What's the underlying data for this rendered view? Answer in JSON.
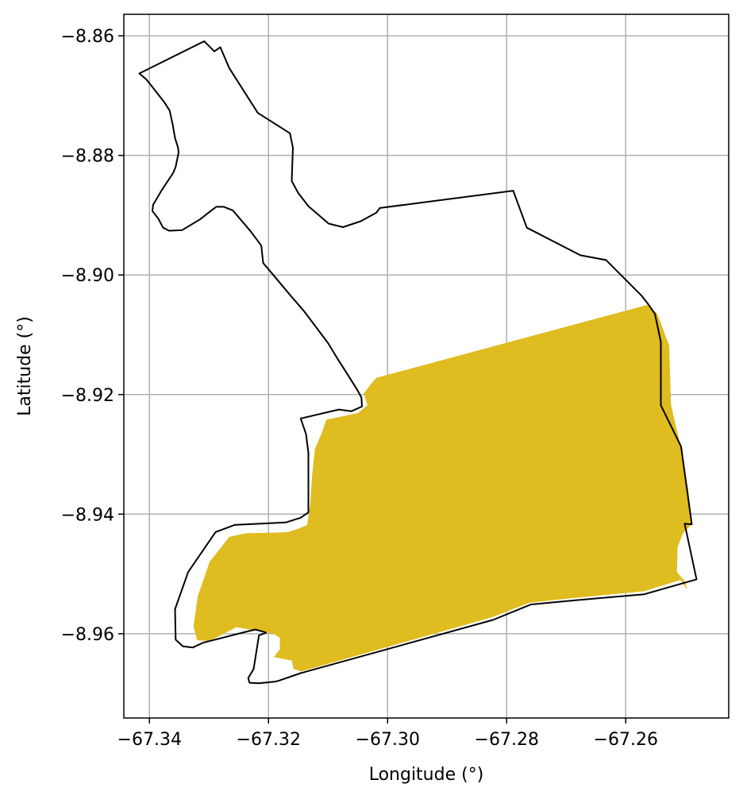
{
  "chart_data": {
    "type": "map",
    "title": "",
    "xlabel": "Longitude (°)",
    "ylabel": "Latitude (°)",
    "xlim": [
      -67.3443,
      -67.2427
    ],
    "ylim": [
      -8.9741,
      -8.8564
    ],
    "grid": true,
    "xticks": [
      -67.34,
      -67.32,
      -67.3,
      -67.28,
      -67.26
    ],
    "xtick_labels": [
      "−67.34",
      "−67.32",
      "−67.30",
      "−67.28",
      "−67.26"
    ],
    "yticks": [
      -8.86,
      -8.88,
      -8.9,
      -8.92,
      -8.94,
      -8.96
    ],
    "ytick_labels": [
      "−8.86",
      "−8.88",
      "−8.90",
      "−8.92",
      "−8.94",
      "−8.96"
    ],
    "colors": {
      "outline": "#000000",
      "fill": "#dfbc1f",
      "grid": "#b0b0b0"
    },
    "outline": [
      [
        -67.3281,
        -8.8619
      ],
      [
        -67.3266,
        -8.8654
      ],
      [
        -67.3218,
        -8.8729
      ],
      [
        -67.3164,
        -8.8763
      ],
      [
        -67.3159,
        -8.8787
      ],
      [
        -67.3161,
        -8.8843
      ],
      [
        -67.315,
        -8.8863
      ],
      [
        -67.3133,
        -8.8885
      ],
      [
        -67.3099,
        -8.8914
      ],
      [
        -67.3075,
        -8.892
      ],
      [
        -67.3045,
        -8.891
      ],
      [
        -67.3019,
        -8.8896
      ],
      [
        -67.3013,
        -8.8888
      ],
      [
        -67.2789,
        -8.8859
      ],
      [
        -67.2766,
        -8.8921
      ],
      [
        -67.2676,
        -8.8967
      ],
      [
        -67.2633,
        -8.8975
      ],
      [
        -67.2573,
        -8.9035
      ],
      [
        -67.2562,
        -8.9049
      ],
      [
        -67.2551,
        -8.9065
      ],
      [
        -67.2541,
        -8.9112
      ],
      [
        -67.2541,
        -8.9218
      ],
      [
        -67.2507,
        -8.9287
      ],
      [
        -67.2489,
        -8.9417
      ],
      [
        -67.2501,
        -8.9416
      ],
      [
        -67.2481,
        -8.9509
      ],
      [
        -67.2569,
        -8.9534
      ],
      [
        -67.2684,
        -8.9544
      ],
      [
        -67.2759,
        -8.9551
      ],
      [
        -67.2823,
        -8.9577
      ],
      [
        -67.3146,
        -8.9666
      ],
      [
        -67.3181,
        -8.9678
      ],
      [
        -67.3188,
        -8.968
      ],
      [
        -67.3216,
        -8.9683
      ],
      [
        -67.3232,
        -8.9682
      ],
      [
        -67.3234,
        -8.9674
      ],
      [
        -67.3225,
        -8.9659
      ],
      [
        -67.3216,
        -8.9603
      ],
      [
        -67.3204,
        -8.9598
      ],
      [
        -67.3222,
        -8.9593
      ],
      [
        -67.3231,
        -8.9595
      ],
      [
        -67.331,
        -8.9615
      ],
      [
        -67.3327,
        -8.9623
      ],
      [
        -67.3344,
        -8.9621
      ],
      [
        -67.3356,
        -8.961
      ],
      [
        -67.3357,
        -8.9559
      ],
      [
        -67.3335,
        -8.9497
      ],
      [
        -67.3289,
        -8.943
      ],
      [
        -67.3257,
        -8.9418
      ],
      [
        -67.3171,
        -8.9414
      ],
      [
        -67.3146,
        -8.9406
      ],
      [
        -67.3133,
        -8.9397
      ],
      [
        -67.3133,
        -8.9372
      ],
      [
        -67.3133,
        -8.9298
      ],
      [
        -67.3137,
        -8.9266
      ],
      [
        -67.3146,
        -8.924
      ],
      [
        -67.3082,
        -8.9225
      ],
      [
        -67.3061,
        -8.9228
      ],
      [
        -67.3043,
        -8.922
      ],
      [
        -67.3044,
        -8.9205
      ],
      [
        -67.3051,
        -8.9192
      ],
      [
        -67.307,
        -8.9162
      ],
      [
        -67.3084,
        -8.914
      ],
      [
        -67.31,
        -8.9114
      ],
      [
        -67.314,
        -8.9061
      ],
      [
        -67.3165,
        -8.9032
      ],
      [
        -67.3192,
        -8.9
      ],
      [
        -67.3209,
        -8.898
      ],
      [
        -67.3212,
        -8.8951
      ],
      [
        -67.323,
        -8.8927
      ],
      [
        -67.326,
        -8.8892
      ],
      [
        -67.3275,
        -8.8886
      ],
      [
        -67.3288,
        -8.8886
      ],
      [
        -67.3301,
        -8.8896
      ],
      [
        -67.3315,
        -8.8907
      ],
      [
        -67.3345,
        -8.8925
      ],
      [
        -67.3367,
        -8.8926
      ],
      [
        -67.3377,
        -8.8921
      ],
      [
        -67.3385,
        -8.8906
      ],
      [
        -67.3395,
        -8.8893
      ],
      [
        -67.3394,
        -8.8883
      ],
      [
        -67.338,
        -8.8859
      ],
      [
        -67.336,
        -8.8829
      ],
      [
        -67.3356,
        -8.8819
      ],
      [
        -67.3351,
        -8.8795
      ],
      [
        -67.3352,
        -8.8787
      ],
      [
        -67.3357,
        -8.8771
      ],
      [
        -67.3361,
        -8.8748
      ],
      [
        -67.3366,
        -8.8725
      ],
      [
        -67.3375,
        -8.8711
      ],
      [
        -67.3398,
        -8.8682
      ],
      [
        -67.3405,
        -8.8673
      ],
      [
        -67.3417,
        -8.8663
      ],
      [
        -67.3308,
        -8.8609
      ],
      [
        -67.3291,
        -8.8626
      ]
    ],
    "shaded_area": [
      [
        -67.3019,
        -8.9172
      ],
      [
        -67.2563,
        -8.905
      ],
      [
        -67.2547,
        -8.9065
      ],
      [
        -67.2527,
        -8.9118
      ],
      [
        -67.2524,
        -8.9217
      ],
      [
        -67.2508,
        -8.9286
      ],
      [
        -67.2495,
        -8.936
      ],
      [
        -67.249,
        -8.9418
      ],
      [
        -67.2504,
        -8.9432
      ],
      [
        -67.2513,
        -8.9456
      ],
      [
        -67.2514,
        -8.9497
      ],
      [
        -67.25,
        -8.9513
      ],
      [
        -67.2497,
        -8.9526
      ],
      [
        -67.2508,
        -8.951
      ],
      [
        -67.2569,
        -8.9529
      ],
      [
        -67.2685,
        -8.954
      ],
      [
        -67.2761,
        -8.9548
      ],
      [
        -67.2826,
        -8.9573
      ],
      [
        -67.3145,
        -8.9663
      ],
      [
        -67.3158,
        -8.9659
      ],
      [
        -67.3161,
        -8.9645
      ],
      [
        -67.3191,
        -8.9639
      ],
      [
        -67.3181,
        -8.9626
      ],
      [
        -67.3181,
        -8.9607
      ],
      [
        -67.3192,
        -8.96
      ],
      [
        -67.3254,
        -8.9589
      ],
      [
        -67.3293,
        -8.9609
      ],
      [
        -67.3303,
        -8.9612
      ],
      [
        -67.332,
        -8.9611
      ],
      [
        -67.3326,
        -8.9588
      ],
      [
        -67.3319,
        -8.9538
      ],
      [
        -67.3299,
        -8.948
      ],
      [
        -67.3266,
        -8.9438
      ],
      [
        -67.3237,
        -8.9432
      ],
      [
        -67.3191,
        -8.9431
      ],
      [
        -67.3167,
        -8.943
      ],
      [
        -67.3149,
        -8.9424
      ],
      [
        -67.3135,
        -8.9418
      ],
      [
        -67.313,
        -8.9384
      ],
      [
        -67.3127,
        -8.9338
      ],
      [
        -67.3122,
        -8.9291
      ],
      [
        -67.311,
        -8.9263
      ],
      [
        -67.3103,
        -8.9242
      ],
      [
        -67.3079,
        -8.9237
      ],
      [
        -67.305,
        -8.9231
      ],
      [
        -67.3034,
        -8.9218
      ],
      [
        -67.304,
        -8.9198
      ],
      [
        -67.303,
        -8.9185
      ]
    ]
  }
}
